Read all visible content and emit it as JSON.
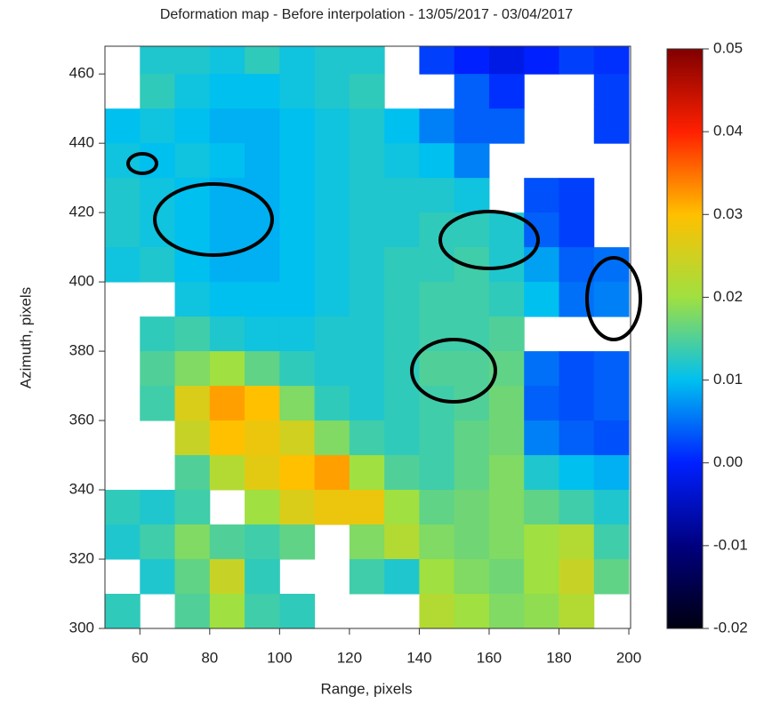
{
  "chart_data": {
    "type": "heatmap",
    "title": "Deformation map - Before interpolation - 13/05/2017 - 03/04/2017",
    "x_label": "Range, pixels",
    "y_label": "Azimuth, pixels",
    "xlim": [
      50,
      200.5
    ],
    "ylim": [
      300,
      468
    ],
    "xticks": [
      60,
      80,
      100,
      120,
      140,
      160,
      180,
      200
    ],
    "yticks": [
      300,
      320,
      340,
      360,
      380,
      400,
      420,
      440,
      460
    ],
    "x": [
      55,
      65,
      75,
      85,
      95,
      105,
      115,
      125,
      135,
      145,
      155,
      165,
      175,
      185,
      195
    ],
    "y": [
      465,
      455,
      445,
      435,
      425,
      415,
      405,
      395,
      385,
      375,
      365,
      355,
      345,
      335,
      325,
      315,
      305
    ],
    "z": [
      [
        null,
        0.012,
        0.012,
        0.011,
        0.013,
        0.011,
        0.012,
        0.012,
        null,
        0.002,
        0.0,
        -0.002,
        0.0,
        0.002,
        0.001
      ],
      [
        null,
        0.013,
        0.011,
        0.01,
        0.01,
        0.011,
        0.012,
        0.013,
        null,
        null,
        0.004,
        0.001,
        null,
        null,
        0.002
      ],
      [
        0.01,
        0.011,
        0.01,
        0.009,
        0.009,
        0.01,
        0.011,
        0.012,
        0.01,
        0.006,
        0.004,
        0.004,
        null,
        null,
        0.002
      ],
      [
        0.011,
        0.01,
        0.011,
        0.01,
        0.009,
        0.01,
        0.011,
        0.012,
        0.011,
        0.01,
        0.006,
        null,
        null,
        null,
        null
      ],
      [
        0.012,
        0.011,
        0.01,
        0.009,
        0.009,
        0.01,
        0.011,
        0.012,
        0.012,
        0.012,
        0.011,
        null,
        0.003,
        0.002,
        null
      ],
      [
        0.012,
        0.011,
        0.01,
        0.009,
        0.009,
        0.01,
        0.011,
        0.012,
        0.012,
        0.013,
        0.013,
        0.012,
        0.004,
        0.002,
        null
      ],
      [
        0.011,
        0.012,
        0.01,
        0.009,
        0.009,
        0.01,
        0.011,
        0.012,
        0.013,
        0.013,
        0.014,
        0.012,
        0.008,
        0.004,
        0.005
      ],
      [
        null,
        null,
        0.011,
        0.01,
        0.01,
        0.01,
        0.011,
        0.012,
        0.013,
        0.014,
        0.014,
        0.013,
        0.01,
        0.005,
        0.006
      ],
      [
        null,
        0.013,
        0.014,
        0.012,
        0.011,
        0.011,
        0.012,
        0.012,
        0.013,
        0.014,
        0.014,
        0.015,
        null,
        null,
        null
      ],
      [
        null,
        0.015,
        0.018,
        0.02,
        0.016,
        0.013,
        0.012,
        0.012,
        0.013,
        0.015,
        0.015,
        0.016,
        0.005,
        0.003,
        0.004
      ],
      [
        null,
        0.014,
        0.026,
        0.032,
        0.03,
        0.018,
        0.013,
        0.012,
        0.013,
        0.014,
        0.015,
        0.017,
        0.004,
        0.003,
        0.004
      ],
      [
        null,
        null,
        0.024,
        0.03,
        0.028,
        0.025,
        0.018,
        0.014,
        0.013,
        0.014,
        0.016,
        0.017,
        0.006,
        0.004,
        0.003
      ],
      [
        null,
        null,
        0.015,
        0.022,
        0.027,
        0.03,
        0.032,
        0.02,
        0.015,
        0.014,
        0.016,
        0.018,
        0.012,
        0.01,
        0.009
      ],
      [
        0.013,
        0.012,
        0.014,
        null,
        0.02,
        0.026,
        0.028,
        0.028,
        0.02,
        0.016,
        0.017,
        0.018,
        0.016,
        0.014,
        0.012
      ],
      [
        0.012,
        0.014,
        0.018,
        0.015,
        0.014,
        0.016,
        null,
        0.018,
        0.022,
        0.018,
        0.017,
        0.018,
        0.02,
        0.022,
        0.014
      ],
      [
        null,
        0.012,
        0.016,
        0.024,
        0.013,
        null,
        null,
        0.014,
        0.012,
        0.02,
        0.018,
        0.017,
        0.02,
        0.024,
        0.016
      ],
      [
        0.013,
        null,
        0.015,
        0.02,
        0.014,
        0.013,
        null,
        null,
        null,
        0.022,
        0.02,
        0.018,
        0.019,
        0.022,
        null
      ]
    ],
    "colorbar_lim": [
      -0.02,
      0.05
    ],
    "colorbar_ticks": [
      -0.02,
      -0.01,
      {
        "value": 0,
        "label": "0.00"
      },
      0.01,
      0.02,
      0.03,
      0.04,
      0.05
    ],
    "colorscale": [
      "#000010",
      "#00007f",
      "#0020ff",
      "#00c0f0",
      "#a0e040",
      "#ffc000",
      "#ff2000",
      "#800000"
    ]
  }
}
